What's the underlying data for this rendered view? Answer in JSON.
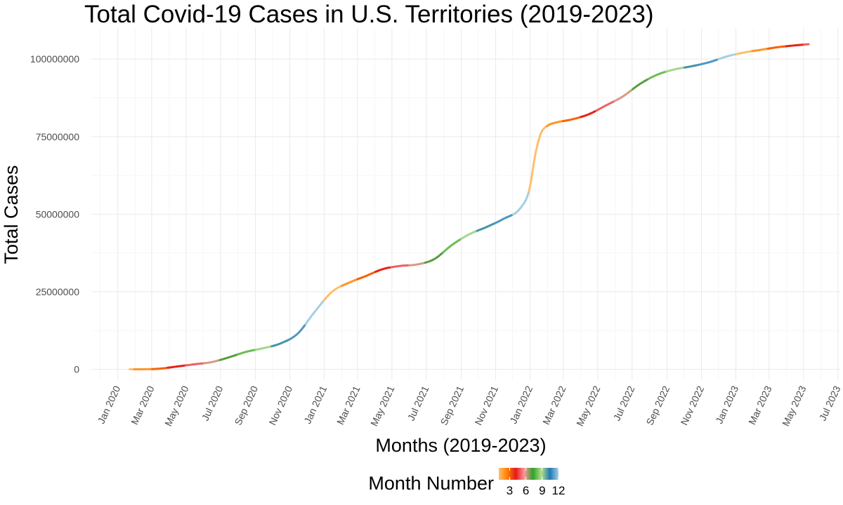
{
  "chart_data": {
    "type": "line",
    "title": "Total Covid-19 Cases in U.S. Territories (2019-2023)",
    "xlabel": "Months (2019-2023)",
    "ylabel": "Total Cases",
    "grid": true,
    "legend_placement": "bottom",
    "x_ticks": [
      "Jan 2020",
      "Mar 2020",
      "May 2020",
      "Jul 2020",
      "Sep 2020",
      "Nov 2020",
      "Jan 2021",
      "Mar 2021",
      "May 2021",
      "Jul 2021",
      "Sep 2021",
      "Nov 2021",
      "Jan 2022",
      "Mar 2022",
      "May 2022",
      "Jul 2022",
      "Sep 2022",
      "Nov 2022",
      "Jan 2023",
      "Mar 2023",
      "May 2023",
      "Jul 2023"
    ],
    "y_ticks": [
      "0",
      "25000000",
      "50000000",
      "75000000",
      "100000000"
    ],
    "ylim": [
      -3500000,
      110000000
    ],
    "xlim": [
      "2019-11-15",
      "2023-07-05"
    ],
    "series": [
      {
        "x": [
          "2020-01-22",
          "2020-02-15",
          "2020-03-15",
          "2020-04-15",
          "2020-05-15",
          "2020-06-15",
          "2020-07-15",
          "2020-08-15",
          "2020-09-15",
          "2020-10-15",
          "2020-11-15",
          "2020-12-15",
          "2021-01-15",
          "2021-02-15",
          "2021-03-15",
          "2021-04-15",
          "2021-05-15",
          "2021-06-15",
          "2021-07-15",
          "2021-08-15",
          "2021-09-15",
          "2021-10-15",
          "2021-11-15",
          "2021-12-15",
          "2021-12-31",
          "2022-01-10",
          "2022-01-20",
          "2022-02-01",
          "2022-02-15",
          "2022-03-15",
          "2022-04-15",
          "2022-05-15",
          "2022-06-15",
          "2022-07-15",
          "2022-08-15",
          "2022-09-15",
          "2022-10-15",
          "2022-11-15",
          "2022-12-15",
          "2023-01-15",
          "2023-02-15",
          "2023-03-15",
          "2023-04-15",
          "2023-05-10"
        ],
        "y": [
          0,
          20000,
          200000,
          900000,
          1600000,
          2300000,
          3800000,
          5600000,
          6800000,
          8300000,
          11500000,
          18500000,
          25000000,
          28000000,
          30000000,
          32300000,
          33300000,
          33800000,
          35500000,
          40000000,
          43500000,
          45800000,
          48500000,
          52000000,
          58000000,
          69000000,
          76000000,
          78500000,
          79500000,
          80500000,
          82200000,
          85000000,
          88000000,
          92000000,
          95000000,
          96700000,
          97700000,
          99000000,
          100800000,
          102100000,
          103000000,
          103800000,
          104400000,
          104800000
        ]
      }
    ],
    "legend": {
      "title": "Month Number",
      "ticks": [
        "3",
        "6",
        "9",
        "12"
      ],
      "colors": [
        "#FDBF6F",
        "#FF7F00",
        "#E31A1C",
        "#FB9A99",
        "#33A02C",
        "#B2DF8A",
        "#1F78B4",
        "#A6CEE3"
      ]
    }
  }
}
